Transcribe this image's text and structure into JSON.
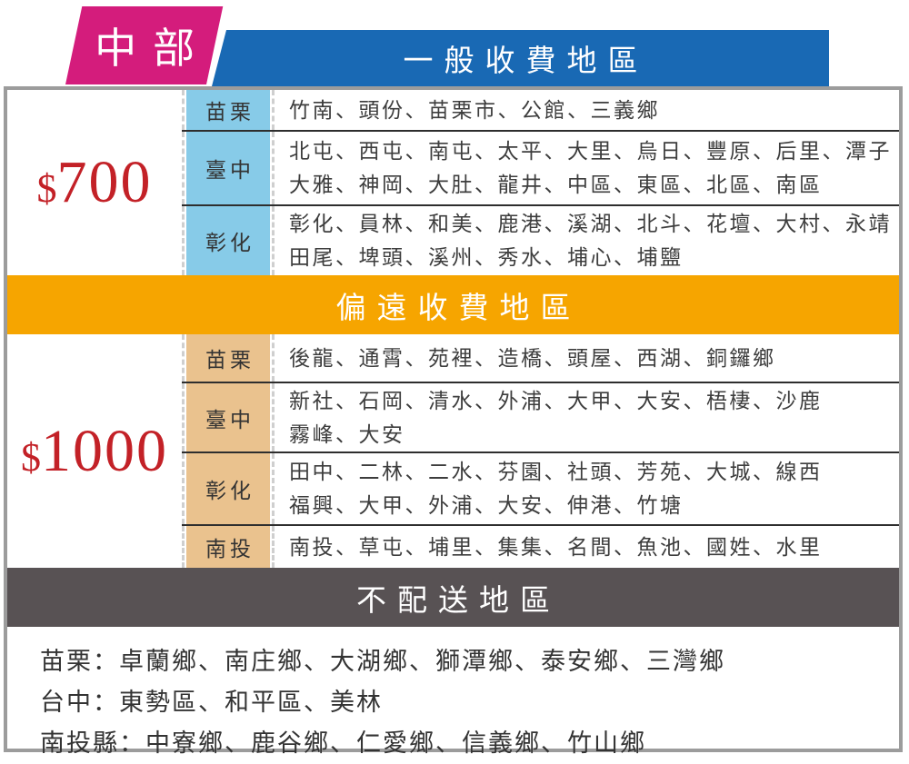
{
  "badge": {
    "label": "中部"
  },
  "colors": {
    "badge_pink": "#D41C7C",
    "header_blue": "#1969B4",
    "area_label_blue": "#87CBE8",
    "remote_orange": "#F6A500",
    "area_label_tan": "#EAC28E",
    "no_delivery_gray": "#585254",
    "price_red": "#C32127",
    "frame_border_gray": "#9C9C9C"
  },
  "sections": [
    {
      "header": "一般收費地區",
      "price_currency": "$",
      "price_amount": "700",
      "rows": [
        {
          "area": "苗栗",
          "districts": "竹南、頭份、苗栗市、公館、三義鄉"
        },
        {
          "area": "臺中",
          "districts": "北屯、西屯、南屯、太平、大里、烏日、豐原、后里、潭子\n大雅、神岡、大肚、龍井、中區、東區、北區、南區"
        },
        {
          "area": "彰化",
          "districts": "彰化、員林、和美、鹿港、溪湖、北斗、花壇、大村、永靖\n田尾、埤頭、溪州、秀水、埔心、埔鹽"
        }
      ]
    },
    {
      "header": "偏遠收費地區",
      "price_currency": "$",
      "price_amount": "1000",
      "rows": [
        {
          "area": "苗栗",
          "districts": "後龍、通霄、苑裡、造橋、頭屋、西湖、銅鑼鄉"
        },
        {
          "area": "臺中",
          "districts": "新社、石岡、清水、外浦、大甲、大安、梧棲、沙鹿\n霧峰、大安"
        },
        {
          "area": "彰化",
          "districts": "田中、二林、二水、芬園、社頭、芳苑、大城、線西\n福興、大甲、外浦、大安、伸港、竹塘"
        },
        {
          "area": "南投",
          "districts": "南投、草屯、埔里、集集、名間、魚池、國姓、水里"
        }
      ]
    }
  ],
  "no_delivery": {
    "header": "不配送地區",
    "notes": [
      "苗栗：卓蘭鄉、南庄鄉、大湖鄉、獅潭鄉、泰安鄉、三灣鄉",
      "台中：東勢區、和平區、美林",
      "南投縣：中寮鄉、鹿谷鄉、仁愛鄉、信義鄉、竹山鄉"
    ]
  }
}
